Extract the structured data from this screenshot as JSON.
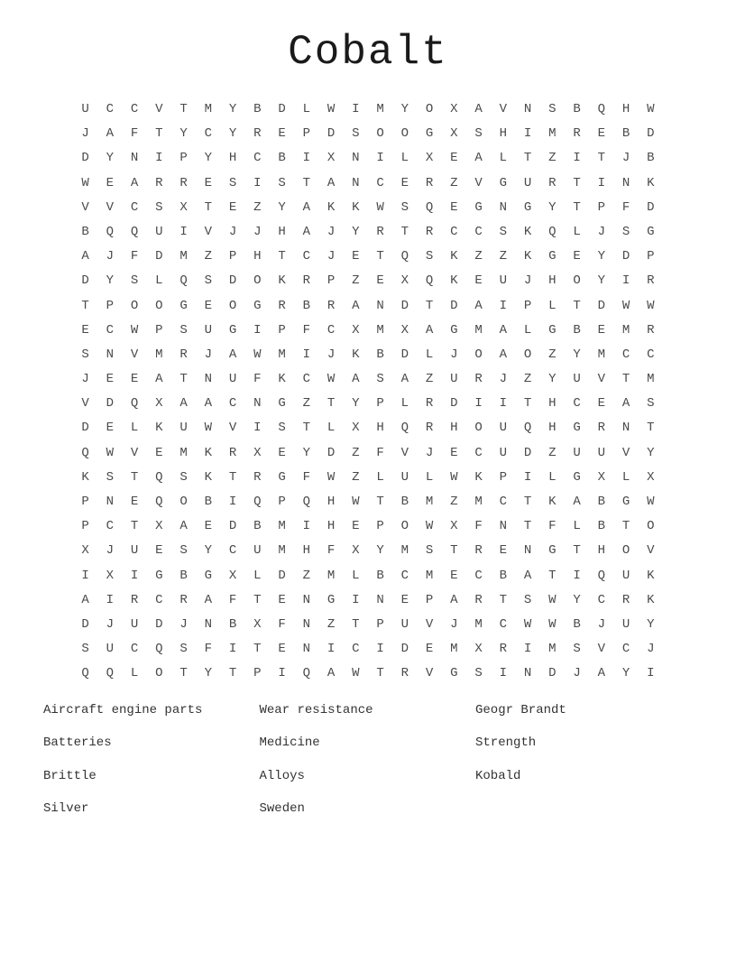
{
  "page": {
    "title": "Cobalt"
  },
  "puzzle": {
    "rows": 24,
    "cols": 24,
    "grid": [
      "UCCVTMYBDLWIMYOXAVNSBQHW",
      "JAFTYCYREPDSOOGXSHIMREBD",
      "DYNIPYHCBIXNILXEALTZITJB",
      "WEARRESISTANCERZVGURTINK",
      "VVCSXTEZYAKKWSQEGNGYTPFD",
      "BQQUIVJJHAJYRTRCCSKQLJSG",
      "AJFDMZPHTCJETQSKZZKGEYDP",
      "DYSLQSDOKRPZEXQKEUJHOYIR",
      "TPOOGEOGRBRANDTDAIPLTDWW",
      "ECWPSUGIPFCXMXAGMALGBEMR",
      "SNVMRJAWMIJKBDLJOAOZYMCC",
      "JEEATNUFKCWASAZURJZYUVTM",
      "VDQXAACNGZTYPLRDIITHCEAS",
      "DELKUWVISTLXHQRHOUQHGRNT",
      "QWVEMKRXEYDZFVJECUDZUUVY",
      "KSTQSKTRGFWZLULWKPILGXLX",
      "PNEQOBIQPQHWTBMZMCTKABGW",
      "PCTXAEDBMIHEPOWXFNTFLBTO",
      "XJUESYCUMHFXYMSTRENGTHOV",
      "IXIGBGXLDZMLBCMECBATIQUK",
      "AIRCRAFTENGINEPARTSWYCRK",
      "DJUDJNBXFNZTPUVJMCWWBJUY",
      "SUCQSFITENICIDEMXRIMSVCJ",
      "QQLOTYTPIQAWTRVGSINDJAYI"
    ]
  },
  "word_list": {
    "columns": [
      [
        "Aircraft engine parts",
        "Batteries",
        "Brittle",
        "Silver"
      ],
      [
        "Wear resistance",
        "Medicine",
        "Alloys",
        "Sweden"
      ],
      [
        "Geogr Brandt",
        "Strength",
        "Kobald"
      ]
    ]
  }
}
